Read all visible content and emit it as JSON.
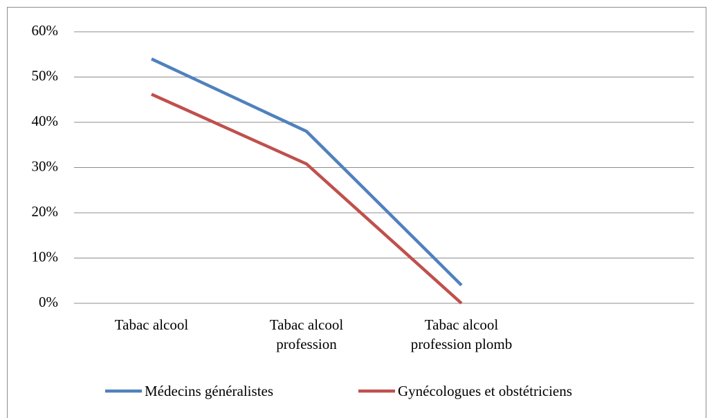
{
  "chart_data": {
    "type": "line",
    "categories": [
      "Tabac alcool",
      "Tabac alcool profession",
      "Tabac alcool profession plomb",
      null
    ],
    "series": [
      {
        "name": "Médecins généralistes",
        "color": "#4f81bd",
        "values": [
          54,
          38,
          4,
          null
        ]
      },
      {
        "name": "Gynécologues et obstétriciens",
        "color": "#c0504d",
        "values": [
          46.2,
          30.8,
          0,
          null
        ]
      }
    ],
    "ylim": [
      0,
      60
    ],
    "yticks": [
      {
        "value": 0,
        "label": "0%"
      },
      {
        "value": 10,
        "label": "10%"
      },
      {
        "value": 20,
        "label": "20%"
      },
      {
        "value": 30,
        "label": "30%"
      },
      {
        "value": 40,
        "label": "40%"
      },
      {
        "value": 50,
        "label": "50%"
      },
      {
        "value": 60,
        "label": "60%"
      }
    ],
    "grid": true,
    "legend": "bottom"
  }
}
